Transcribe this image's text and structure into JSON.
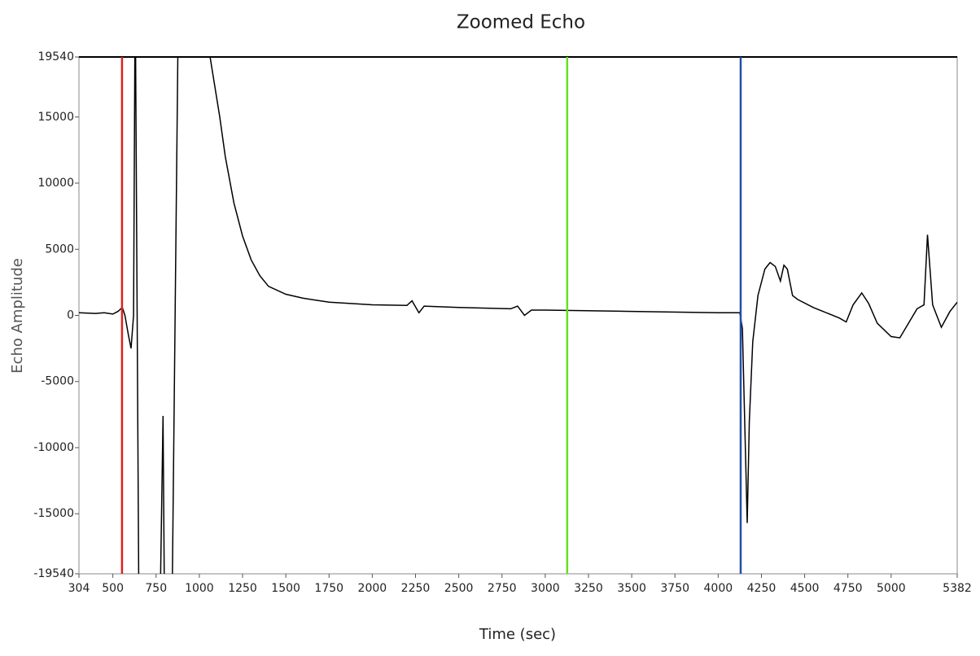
{
  "chart_data": {
    "type": "line",
    "title": "Zoomed Echo",
    "x_label": "Time (sec)",
    "y_label": "Echo Amplitude",
    "xlim": [
      304,
      5382
    ],
    "ylim": [
      -19540,
      19540
    ],
    "xticks": [
      304,
      500,
      750,
      1000,
      1250,
      1500,
      1750,
      2000,
      2250,
      2500,
      2750,
      3000,
      3250,
      3500,
      3750,
      4000,
      4250,
      4500,
      4750,
      5000,
      5382
    ],
    "yticks": [
      -19540,
      -15000,
      -10000,
      -5000,
      0,
      5000,
      10000,
      15000,
      19540
    ],
    "grid": false,
    "series": [
      {
        "color": "#000000",
        "x": [
          304,
          400,
          450,
          500,
          530,
          555,
          570,
          590,
          605,
          620,
          629,
          652,
          770,
          790,
          800,
          840,
          880,
          1040,
          1062,
          1118,
          1150,
          1200,
          1250,
          1300,
          1350,
          1400,
          1500,
          1600,
          1750,
          2000,
          2200,
          2230,
          2270,
          2300,
          2500,
          2800,
          2840,
          2880,
          2920,
          3000,
          3500,
          4000,
          4125,
          4140,
          4168,
          4180,
          4200,
          4230,
          4270,
          4300,
          4330,
          4360,
          4380,
          4400,
          4430,
          4460,
          4550,
          4700,
          4740,
          4780,
          4830,
          4870,
          4920,
          5000,
          5050,
          5100,
          5150,
          5190,
          5210,
          5240,
          5290,
          5340,
          5382
        ],
        "values": [
          200,
          150,
          200,
          100,
          300,
          600,
          0,
          -1500,
          -2500,
          0,
          25000,
          -25000,
          -25000,
          -7600,
          -25000,
          -25000,
          25000,
          25000,
          19540,
          15000,
          12000,
          8500,
          6000,
          4200,
          3000,
          2200,
          1600,
          1300,
          1000,
          800,
          750,
          1100,
          200,
          700,
          600,
          500,
          700,
          0,
          400,
          400,
          300,
          200,
          200,
          -1000,
          -15700,
          -8000,
          -2000,
          1500,
          3500,
          4000,
          3700,
          2600,
          3800,
          3500,
          1500,
          1200,
          600,
          -200,
          -500,
          800,
          1700,
          900,
          -600,
          -1600,
          -1700,
          -600,
          500,
          800,
          6100,
          800,
          -900,
          300,
          1000
        ]
      }
    ],
    "markers": [
      {
        "x": 553,
        "color": "#e02020"
      },
      {
        "x": 3127,
        "color": "#66e020"
      },
      {
        "x": 4130,
        "color": "#1f4fa8"
      }
    ]
  }
}
